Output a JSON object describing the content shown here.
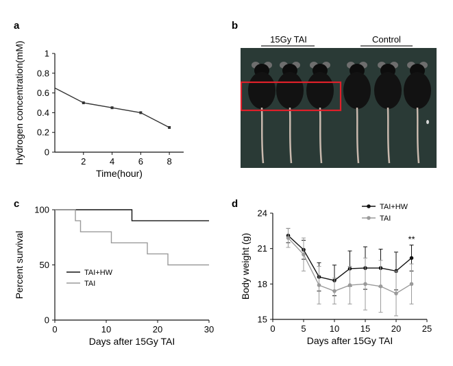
{
  "panels": {
    "a": "a",
    "b": "b",
    "c": "c",
    "d": "d"
  },
  "photo": {
    "label_left": "15Gy TAI",
    "label_right": "Control",
    "highlight_color": "#e0202a",
    "background_color": "#2a3a36"
  },
  "chart_data": [
    {
      "id": "a",
      "type": "line",
      "title": "",
      "xlabel": "Time(hour)",
      "ylabel": "Hydrogen concentration(mM)",
      "x": [
        0,
        2,
        4,
        6,
        8
      ],
      "series": [
        {
          "name": "Hydrogen",
          "values": [
            0.65,
            0.5,
            0.45,
            0.4,
            0.25
          ],
          "color": "#333333"
        }
      ],
      "xlim": [
        0,
        9
      ],
      "ylim": [
        0,
        1
      ],
      "xticks": [
        2,
        4,
        6,
        8
      ],
      "yticks": [
        0,
        0.2,
        0.4,
        0.6,
        0.8,
        1
      ],
      "xtick_labels": [
        "2",
        "4",
        "6",
        "8"
      ],
      "ytick_labels": [
        "0",
        "0.2",
        "0.4",
        "0.6",
        "0.8",
        "1"
      ]
    },
    {
      "id": "c",
      "type": "line",
      "style": "step",
      "title": "",
      "xlabel": "Days after 15Gy TAI",
      "ylabel": "Percent survival",
      "xlim": [
        0,
        30
      ],
      "ylim": [
        0,
        100
      ],
      "xticks": [
        0,
        10,
        20,
        30
      ],
      "yticks": [
        0,
        50,
        100
      ],
      "xtick_labels": [
        "0",
        "10",
        "20",
        "30"
      ],
      "ytick_labels": [
        "0",
        "50",
        "100"
      ],
      "series": [
        {
          "name": "TAI+HW",
          "color": "#111111",
          "x": [
            0,
            15,
            15,
            30
          ],
          "values": [
            100,
            100,
            90,
            90
          ]
        },
        {
          "name": "TAI",
          "color": "#9a9a9a",
          "x": [
            0,
            4,
            4,
            5,
            5,
            11,
            11,
            18,
            18,
            22,
            22,
            30
          ],
          "values": [
            100,
            100,
            90,
            90,
            80,
            80,
            70,
            70,
            60,
            60,
            50,
            50
          ]
        }
      ],
      "legend": "bottom-left"
    },
    {
      "id": "d",
      "type": "line",
      "title": "",
      "xlabel": "Days after 15Gy TAI",
      "ylabel": "Body weight (g)",
      "xlim": [
        0,
        25
      ],
      "ylim": [
        15,
        24
      ],
      "xticks": [
        0,
        5,
        10,
        15,
        20,
        25
      ],
      "yticks": [
        15,
        18,
        21,
        24
      ],
      "xtick_labels": [
        "0",
        "5",
        "10",
        "15",
        "20",
        "25"
      ],
      "ytick_labels": [
        "15",
        "18",
        "21",
        "24"
      ],
      "x": [
        2.5,
        5,
        7.5,
        10,
        12.5,
        15,
        17.5,
        20,
        22.5
      ],
      "series": [
        {
          "name": "TAI+HW",
          "color": "#111111",
          "values": [
            22.1,
            20.9,
            18.6,
            18.3,
            19.3,
            19.35,
            19.35,
            19.1,
            20.2
          ],
          "errors": [
            0.6,
            0.8,
            1.2,
            1.3,
            1.5,
            1.8,
            1.6,
            1.6,
            1.1
          ]
        },
        {
          "name": "TAI",
          "color": "#9a9a9a",
          "values": [
            21.9,
            20.5,
            17.9,
            17.4,
            17.9,
            18.0,
            17.8,
            17.2,
            18.0
          ],
          "errors": [
            0.8,
            1.4,
            1.6,
            1.1,
            1.6,
            2.2,
            2.2,
            1.9,
            1.7
          ]
        }
      ],
      "annotation": {
        "text": "**",
        "x": 22.5
      },
      "legend": "top-right"
    }
  ]
}
